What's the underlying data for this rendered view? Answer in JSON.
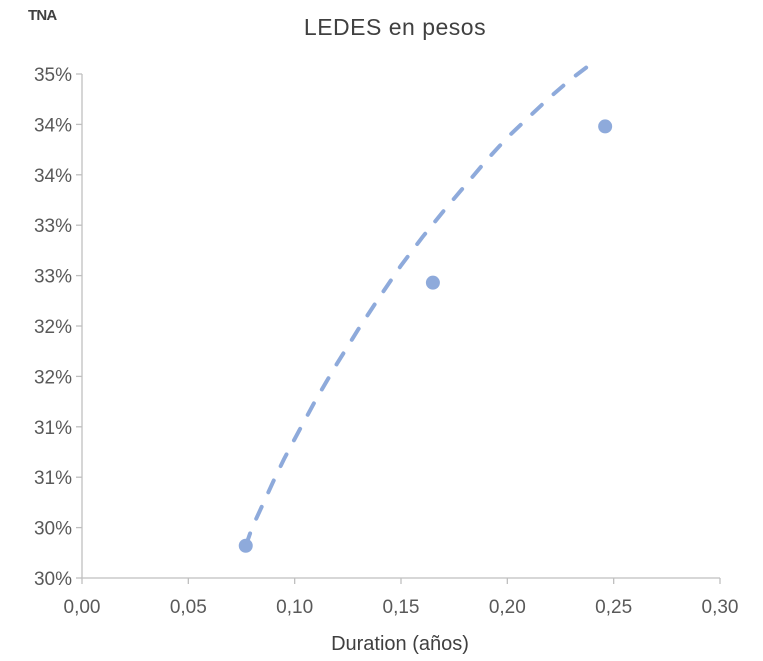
{
  "chart_data": {
    "type": "scatter",
    "title": "LEDES en pesos",
    "ylabel": "TNA",
    "xlabel": "Duration (años)",
    "xlim": [
      0,
      0.3
    ],
    "ylim": [
      0.2975,
      0.3475
    ],
    "x_ticks": [
      "0,00",
      "0,05",
      "0,10",
      "0,15",
      "0,20",
      "0,25",
      "0,30"
    ],
    "y_ticks": [
      "30%",
      "30%",
      "31%",
      "31%",
      "32%",
      "32%",
      "33%",
      "33%",
      "34%",
      "34%",
      "35%"
    ],
    "grid": false,
    "legend": "none",
    "series": [
      {
        "points": [
          {
            "x": 0.077,
            "y": 0.3007
          },
          {
            "x": 0.165,
            "y": 0.3268
          },
          {
            "x": 0.246,
            "y": 0.3423
          }
        ]
      }
    ],
    "trendline": {
      "style": "dashed",
      "points": [
        {
          "x": 0.077,
          "y": 0.3007
        },
        {
          "x": 0.08,
          "y": 0.3025
        },
        {
          "x": 0.085,
          "y": 0.3048
        },
        {
          "x": 0.09,
          "y": 0.3071
        },
        {
          "x": 0.095,
          "y": 0.3093
        },
        {
          "x": 0.1,
          "y": 0.3113
        },
        {
          "x": 0.11,
          "y": 0.3152
        },
        {
          "x": 0.12,
          "y": 0.3188
        },
        {
          "x": 0.13,
          "y": 0.3222
        },
        {
          "x": 0.14,
          "y": 0.3254
        },
        {
          "x": 0.15,
          "y": 0.3285
        },
        {
          "x": 0.16,
          "y": 0.3313
        },
        {
          "x": 0.17,
          "y": 0.3339
        },
        {
          "x": 0.18,
          "y": 0.3364
        },
        {
          "x": 0.19,
          "y": 0.3389
        },
        {
          "x": 0.2,
          "y": 0.3412
        },
        {
          "x": 0.21,
          "y": 0.3432
        },
        {
          "x": 0.22,
          "y": 0.3452
        },
        {
          "x": 0.23,
          "y": 0.347
        },
        {
          "x": 0.24,
          "y": 0.3486
        }
      ]
    },
    "colors": {
      "series": "#8eaadb",
      "marker": "#8eaadb",
      "axis": "#bfbfbf",
      "text": "#595959"
    }
  }
}
